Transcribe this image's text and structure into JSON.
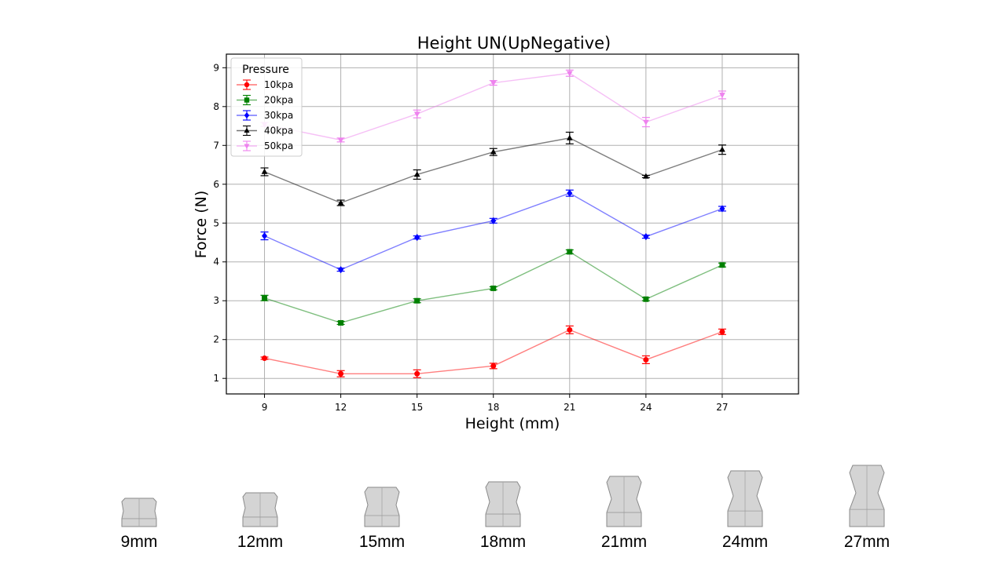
{
  "chart_data": {
    "type": "line",
    "title": "Height UN(UpNegative)",
    "xlabel": "Height (mm)",
    "ylabel": "Force (N)",
    "x": [
      9,
      12,
      15,
      18,
      21,
      24,
      27
    ],
    "xlim": [
      7.5,
      30
    ],
    "ylim": [
      0.6,
      9.35
    ],
    "yticks": [
      1,
      2,
      3,
      4,
      5,
      6,
      7,
      8,
      9
    ],
    "grid": true,
    "legend": {
      "title": "Pressure",
      "placement": "top-left"
    },
    "series": [
      {
        "name": "10kpa",
        "color": "#ff0000",
        "marker": "circle",
        "values": [
          1.52,
          1.12,
          1.12,
          1.32,
          2.25,
          1.48,
          2.2
        ],
        "errors": [
          0.03,
          0.08,
          0.1,
          0.07,
          0.1,
          0.1,
          0.07
        ]
      },
      {
        "name": "20kpa",
        "color": "#008000",
        "marker": "square",
        "values": [
          3.07,
          2.43,
          3.0,
          3.32,
          4.26,
          3.04,
          3.92
        ],
        "errors": [
          0.07,
          0.04,
          0.05,
          0.04,
          0.05,
          0.04,
          0.05
        ]
      },
      {
        "name": "30kpa",
        "color": "#0000ff",
        "marker": "diamond",
        "values": [
          4.67,
          3.8,
          4.63,
          5.06,
          5.77,
          4.65,
          5.37
        ],
        "errors": [
          0.1,
          0.04,
          0.04,
          0.06,
          0.08,
          0.04,
          0.06
        ]
      },
      {
        "name": "40kpa",
        "color": "#000000",
        "marker": "triangle-up",
        "values": [
          6.32,
          5.52,
          6.25,
          6.83,
          7.19,
          6.2,
          6.89
        ],
        "errors": [
          0.1,
          0.07,
          0.12,
          0.09,
          0.15,
          0.03,
          0.12
        ]
      },
      {
        "name": "50kpa",
        "color": "#ee82ee",
        "marker": "triangle-down",
        "values": [
          7.54,
          7.14,
          7.81,
          8.61,
          8.86,
          7.6,
          8.3
        ],
        "errors": [
          0.05,
          0.05,
          0.1,
          0.06,
          0.08,
          0.12,
          0.1
        ]
      }
    ]
  },
  "shapes": {
    "items": [
      {
        "label": "9mm",
        "height_mm": 9
      },
      {
        "label": "12mm",
        "height_mm": 12
      },
      {
        "label": "15mm",
        "height_mm": 15
      },
      {
        "label": "18mm",
        "height_mm": 18
      },
      {
        "label": "21mm",
        "height_mm": 21
      },
      {
        "label": "24mm",
        "height_mm": 24
      },
      {
        "label": "27mm",
        "height_mm": 27
      }
    ]
  }
}
